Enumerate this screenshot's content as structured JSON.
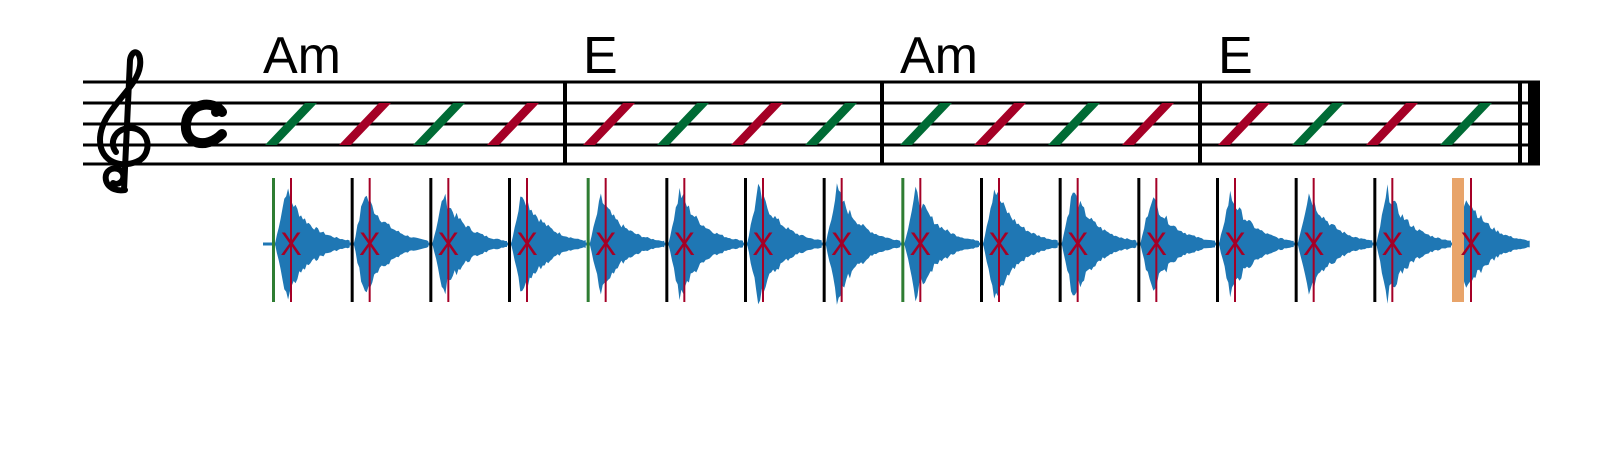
{
  "score": {
    "clef_icon": "treble-clef-icon",
    "time_signature_icon": "common-time-icon",
    "time_signature": "C",
    "chords": [
      "Am",
      "E",
      "Am",
      "E"
    ],
    "measures": [
      {
        "chord": "Am",
        "slashes": [
          "green",
          "red",
          "green",
          "red"
        ]
      },
      {
        "chord": "E",
        "slashes": [
          "red",
          "green",
          "red",
          "green"
        ]
      },
      {
        "chord": "Am",
        "slashes": [
          "green",
          "red",
          "green",
          "red"
        ]
      },
      {
        "chord": "E",
        "slashes": [
          "red",
          "green",
          "red",
          "green"
        ]
      }
    ],
    "end_barline_icon": "final-barline-icon"
  },
  "colors": {
    "staff": "#000000",
    "green": "#006b35",
    "red": "#a50026",
    "waveform": "#1f77b4",
    "onset_marker": "#a50026",
    "beat_line": "#000000",
    "beat_green": "#2e7d32",
    "highlight": "#e8a46a"
  },
  "waveform": {
    "icon": "audio-waveform-icon",
    "beat_count": 16,
    "marker_symbol": "X"
  }
}
